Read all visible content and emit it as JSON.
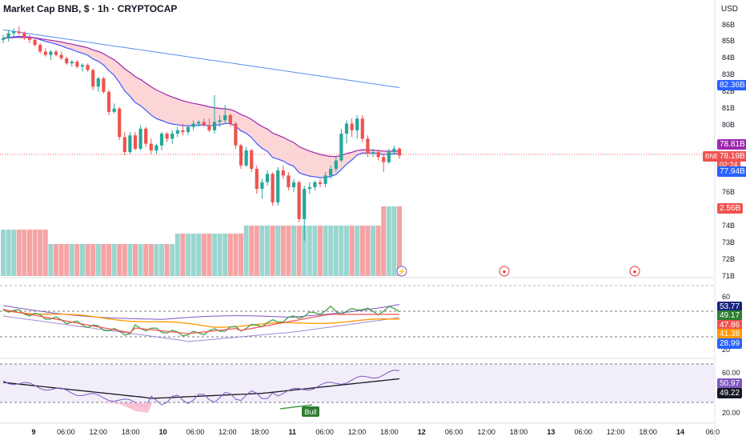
{
  "header": {
    "symbol_title": "Market Cap BNB, $ · 1h · CRYPTOCAP",
    "currency": "USD"
  },
  "price_axis": {
    "ticks": [
      "86B",
      "85B",
      "84B",
      "83B",
      "82B",
      "81B",
      "80B",
      "76B",
      "74B",
      "73B",
      "72B",
      "71B"
    ],
    "badges": {
      "upper_ma": "82.36B",
      "cloud_top": "78.81B",
      "symbol_tag": "BNB",
      "last_price": "78.19B",
      "countdown": "02:24",
      "cloud_bottom": "77.94B",
      "volume": "2.56B"
    }
  },
  "rsi_panel": {
    "ticks": [
      "60",
      "20"
    ],
    "badges": [
      "53.77",
      "49.17",
      "47.86",
      "41.38",
      "28.99"
    ]
  },
  "osc_panel": {
    "ticks": [
      "60.00",
      "20.00"
    ],
    "badges": [
      "50.97",
      "49.22"
    ],
    "bull_label": "Bull"
  },
  "time_axis": {
    "labels": [
      "9",
      "06:00",
      "12:00",
      "18:00",
      "10",
      "06:00",
      "12:00",
      "18:00",
      "11",
      "06:00",
      "12:00",
      "18:00",
      "12",
      "06:00",
      "12:00",
      "18:00",
      "13",
      "06:00",
      "12:00",
      "18:00",
      "14",
      "06:0"
    ]
  },
  "colors": {
    "up": "#26a69a",
    "down": "#ef5350",
    "vol_up": "#9ad6cf",
    "vol_down": "#f5a3a3",
    "cloud": "#fbcfd0",
    "ema_fast": "#3d5afe",
    "ema_slow": "#9c27b0",
    "ma_long": "#5b8def"
  },
  "chart_data": {
    "type": "candlestick",
    "price_unit": "B USD",
    "candles": [
      [
        85.1,
        85.4,
        84.9,
        85.2
      ],
      [
        85.2,
        85.7,
        85.0,
        85.5
      ],
      [
        85.5,
        85.8,
        85.3,
        85.6
      ],
      [
        85.6,
        85.9,
        85.4,
        85.5
      ],
      [
        85.5,
        85.6,
        85.1,
        85.2
      ],
      [
        85.2,
        85.4,
        84.9,
        85.1
      ],
      [
        85.1,
        85.2,
        84.7,
        84.8
      ],
      [
        84.8,
        84.9,
        84.3,
        84.4
      ],
      [
        84.4,
        84.6,
        84.1,
        84.2
      ],
      [
        84.2,
        84.5,
        83.9,
        84.4
      ],
      [
        84.4,
        84.5,
        84.1,
        84.2
      ],
      [
        84.2,
        84.4,
        83.9,
        84.0
      ],
      [
        84.0,
        84.1,
        83.6,
        83.7
      ],
      [
        83.7,
        83.9,
        83.5,
        83.8
      ],
      [
        83.8,
        83.9,
        83.4,
        83.5
      ],
      [
        83.5,
        83.7,
        83.2,
        83.6
      ],
      [
        83.6,
        83.7,
        83.2,
        83.3
      ],
      [
        83.3,
        83.4,
        82.1,
        82.3
      ],
      [
        82.3,
        82.9,
        82.0,
        82.8
      ],
      [
        82.8,
        82.9,
        81.9,
        82.0
      ],
      [
        82.0,
        82.1,
        80.6,
        80.8
      ],
      [
        80.8,
        81.3,
        80.7,
        81.0
      ],
      [
        81.0,
        81.1,
        79.1,
        79.3
      ],
      [
        79.3,
        79.6,
        78.2,
        78.4
      ],
      [
        78.4,
        79.6,
        78.3,
        79.4
      ],
      [
        79.4,
        79.6,
        78.5,
        78.6
      ],
      [
        78.6,
        80.0,
        78.5,
        79.8
      ],
      [
        79.8,
        79.9,
        78.7,
        78.9
      ],
      [
        78.9,
        79.2,
        78.3,
        78.5
      ],
      [
        78.5,
        78.9,
        78.3,
        78.8
      ],
      [
        78.8,
        79.6,
        78.5,
        79.5
      ],
      [
        79.5,
        79.6,
        79.0,
        79.2
      ],
      [
        79.2,
        79.7,
        78.9,
        79.5
      ],
      [
        79.5,
        79.9,
        79.3,
        79.7
      ],
      [
        79.7,
        80.1,
        79.4,
        79.6
      ],
      [
        79.6,
        80.0,
        79.4,
        79.9
      ],
      [
        79.9,
        80.3,
        79.7,
        80.1
      ],
      [
        80.1,
        80.3,
        79.9,
        80.2
      ],
      [
        80.2,
        80.4,
        79.9,
        80.0
      ],
      [
        80.0,
        80.4,
        79.6,
        79.7
      ],
      [
        79.7,
        81.8,
        79.5,
        80.2
      ],
      [
        80.2,
        80.6,
        79.9,
        80.3
      ],
      [
        80.3,
        81.2,
        80.1,
        80.6
      ],
      [
        80.6,
        80.7,
        79.9,
        80.1
      ],
      [
        80.1,
        80.2,
        78.6,
        78.8
      ],
      [
        78.8,
        78.9,
        77.4,
        77.6
      ],
      [
        77.6,
        78.7,
        77.5,
        78.5
      ],
      [
        78.5,
        78.6,
        77.2,
        77.4
      ],
      [
        77.4,
        77.6,
        75.9,
        76.2
      ],
      [
        76.2,
        76.8,
        75.6,
        76.6
      ],
      [
        76.6,
        77.3,
        76.4,
        77.1
      ],
      [
        77.1,
        77.2,
        75.2,
        75.4
      ],
      [
        75.4,
        77.5,
        75.2,
        77.3
      ],
      [
        77.3,
        77.6,
        76.8,
        77.0
      ],
      [
        77.0,
        77.2,
        76.1,
        76.3
      ],
      [
        76.3,
        76.8,
        76.0,
        76.6
      ],
      [
        76.6,
        76.7,
        74.2,
        74.4
      ],
      [
        74.4,
        76.4,
        73.1,
        76.2
      ],
      [
        76.2,
        76.6,
        75.9,
        76.3
      ],
      [
        76.3,
        76.7,
        76.1,
        76.6
      ],
      [
        76.6,
        76.8,
        76.3,
        76.5
      ],
      [
        76.5,
        77.2,
        76.3,
        77.0
      ],
      [
        77.0,
        77.6,
        76.8,
        77.4
      ],
      [
        77.4,
        78.1,
        77.2,
        77.9
      ],
      [
        77.9,
        79.8,
        77.8,
        79.5
      ],
      [
        79.5,
        80.3,
        78.9,
        80.1
      ],
      [
        80.1,
        80.4,
        79.3,
        79.7
      ],
      [
        79.7,
        80.6,
        79.2,
        80.4
      ],
      [
        80.4,
        80.6,
        79.0,
        79.2
      ],
      [
        79.2,
        79.4,
        78.1,
        78.3
      ],
      [
        78.3,
        78.6,
        78.1,
        78.4
      ],
      [
        78.4,
        78.5,
        77.9,
        78.1
      ],
      [
        78.1,
        78.3,
        77.2,
        77.8
      ],
      [
        77.8,
        78.6,
        77.7,
        78.4
      ],
      [
        78.4,
        78.8,
        78.2,
        78.6
      ],
      [
        78.6,
        78.7,
        78.0,
        78.19
      ]
    ],
    "volume_series_note": "volume bars mirror candle direction",
    "last_price": 78.19
  }
}
